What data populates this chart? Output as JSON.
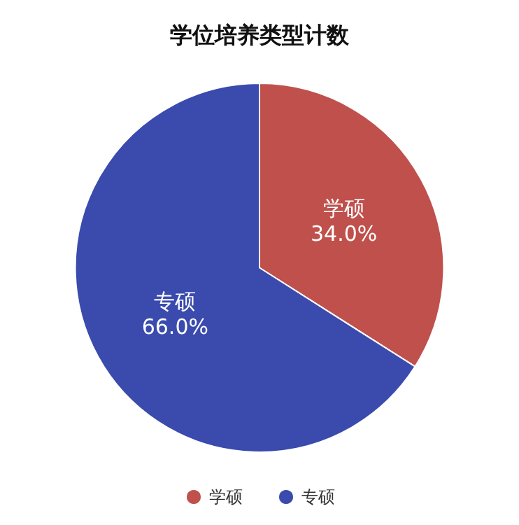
{
  "chart_data": {
    "type": "pie",
    "title": "学位培养类型计数",
    "categories": [
      "学硕",
      "专硕"
    ],
    "values": [
      34.0,
      66.0
    ],
    "colors": [
      "#bf504c",
      "#3a4bad"
    ],
    "value_labels": [
      "34.0%",
      "66.0%"
    ],
    "legend": "bottom"
  }
}
